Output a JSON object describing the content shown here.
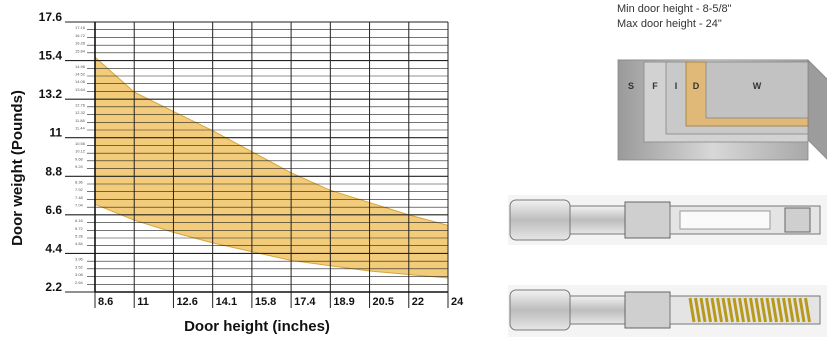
{
  "chart_data": {
    "type": "area",
    "title": "",
    "xlabel": "Door height (inches)",
    "ylabel": "Door weight (Pounds)",
    "x_ticks": [
      8.6,
      11,
      12.6,
      14.1,
      15.8,
      17.4,
      18.9,
      20.5,
      22,
      24
    ],
    "x_tick_labels": [
      "8.6",
      "11",
      "12.6",
      "14.1",
      "15.8",
      "17.4",
      "18.9",
      "20.5",
      "22",
      "24"
    ],
    "y_major_ticks": [
      2.2,
      4.4,
      6.6,
      8.8,
      11,
      13.2,
      15.4,
      17.6
    ],
    "y_major_tick_labels": [
      "2.2",
      "4.4",
      "6.6",
      "8.8",
      "11",
      "13.2",
      "15.4",
      "17.6"
    ],
    "y_minor_tick_labels": [
      "17.16",
      "16.72",
      "16.28",
      "15.84",
      "14.96",
      "14.52",
      "14.08",
      "13.64",
      "12.76",
      "12.32",
      "11.88",
      "11.44",
      "10.56",
      "10.12",
      "9.68",
      "9.24",
      "8.36",
      "7.92",
      "7.48",
      "7.04",
      "6.16",
      "5.72",
      "5.28",
      "4.84",
      "3.96",
      "3.52",
      "3.08",
      "2.64"
    ],
    "ylim": [
      2.2,
      17.6
    ],
    "grid": true,
    "series": [
      {
        "upper": [
          15.6,
          13.6,
          12.5,
          11.4,
          10.2,
          9.0,
          8.0,
          7.3,
          6.6,
          6.0
        ],
        "lower": [
          7.2,
          6.3,
          5.6,
          5.0,
          4.5,
          4.0,
          3.7,
          3.4,
          3.2,
          3.0
        ]
      }
    ],
    "band_color": "#f2cc7a",
    "band_edge_color": "#d9a53a"
  },
  "notes": {
    "min_height": "Min door height - 8-5/8\"",
    "max_height": "Max door height - 24\""
  },
  "illustration": {
    "segment_labels": [
      "S",
      "F",
      "I",
      "D",
      "W"
    ]
  }
}
